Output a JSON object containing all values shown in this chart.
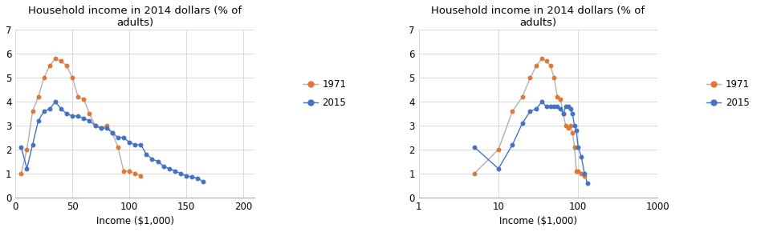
{
  "title": "Household income in 2014 dollars (% of\nadults)",
  "xlabel": "Income ($1,000)",
  "color_1971": "#e07838",
  "color_2015": "#4472c4",
  "line_color_1971": "#b0b0b0",
  "background": "#ffffff",
  "linear_1971_x": [
    5,
    10,
    15,
    20,
    25,
    30,
    35,
    40,
    45,
    50,
    55,
    60,
    65,
    70,
    75,
    80,
    85,
    90,
    95,
    100,
    105,
    110
  ],
  "linear_1971_y": [
    1.0,
    2.0,
    3.6,
    4.2,
    5.0,
    5.5,
    5.8,
    5.7,
    5.5,
    5.0,
    4.2,
    4.1,
    3.5,
    3.0,
    2.9,
    3.0,
    2.7,
    2.1,
    1.1,
    1.1,
    1.0,
    0.9
  ],
  "linear_2015_x": [
    5,
    10,
    15,
    20,
    25,
    30,
    35,
    40,
    45,
    50,
    55,
    60,
    65,
    70,
    75,
    80,
    85,
    90,
    95,
    100,
    105,
    110,
    115,
    120,
    125,
    130,
    135,
    140,
    145,
    150,
    155,
    160,
    165
  ],
  "linear_2015_y": [
    2.1,
    1.2,
    2.2,
    3.2,
    3.6,
    3.7,
    4.0,
    3.7,
    3.5,
    3.4,
    3.4,
    3.3,
    3.2,
    3.0,
    2.9,
    2.9,
    2.7,
    2.5,
    2.5,
    2.3,
    2.2,
    2.2,
    1.8,
    1.6,
    1.5,
    1.3,
    1.2,
    1.1,
    1.0,
    0.9,
    0.85,
    0.8,
    0.65
  ],
  "log_1971_x": [
    5,
    10,
    15,
    20,
    25,
    30,
    35,
    40,
    45,
    50,
    55,
    60,
    65,
    70,
    75,
    80,
    85,
    90,
    95,
    100,
    110,
    120
  ],
  "log_1971_y": [
    1.0,
    2.0,
    3.6,
    4.2,
    5.0,
    5.5,
    5.8,
    5.7,
    5.5,
    5.0,
    4.2,
    4.1,
    3.5,
    3.0,
    2.9,
    3.0,
    2.7,
    2.1,
    1.1,
    1.1,
    1.0,
    0.9
  ],
  "log_2015_x": [
    5,
    10,
    15,
    20,
    25,
    30,
    35,
    40,
    45,
    50,
    55,
    60,
    65,
    70,
    75,
    80,
    85,
    90,
    95,
    100,
    110,
    120,
    130
  ],
  "log_2015_y": [
    2.1,
    1.2,
    2.2,
    3.1,
    3.6,
    3.7,
    4.0,
    3.8,
    3.8,
    3.8,
    3.8,
    3.7,
    3.5,
    3.8,
    3.8,
    3.7,
    3.5,
    3.0,
    2.8,
    2.1,
    1.7,
    1.0,
    0.6
  ],
  "ylim": [
    0,
    7
  ],
  "yticks": [
    0,
    1,
    2,
    3,
    4,
    5,
    6,
    7
  ],
  "linear_xlim": [
    0,
    210
  ],
  "linear_xticks": [
    0,
    50,
    100,
    150,
    200
  ],
  "log_xlim_min": 1,
  "log_xlim_max": 1000,
  "legend_labels": [
    "1971",
    "2015"
  ],
  "marker_size": 18,
  "linewidth": 1.0
}
